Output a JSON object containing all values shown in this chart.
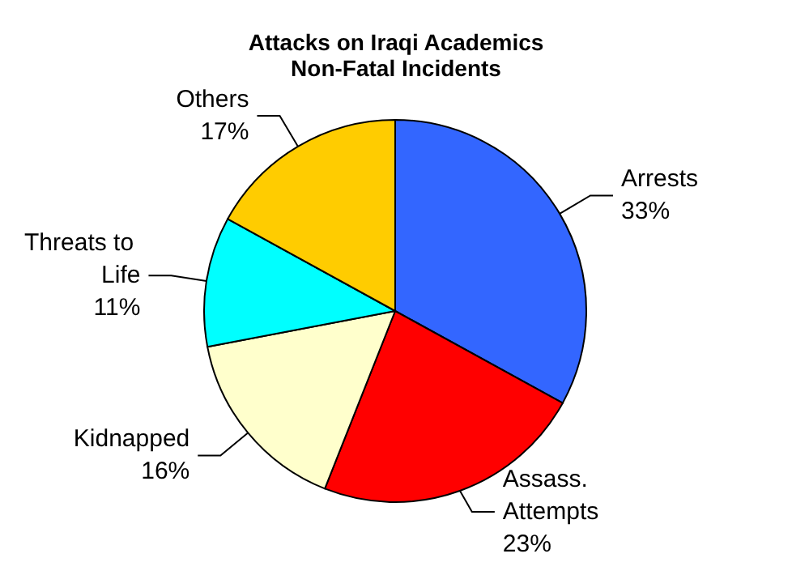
{
  "chart_data": {
    "type": "pie",
    "title": "Attacks on Iraqi Academics",
    "subtitle": "Non-Fatal Incidents",
    "categories": [
      "Arrests",
      "Assass. Attempts",
      "Kidnapped",
      "Threats to Life",
      "Others"
    ],
    "values": [
      33,
      23,
      16,
      11,
      17
    ],
    "value_labels": [
      "33%",
      "23%",
      "16%",
      "11%",
      "17%"
    ],
    "colors": [
      "#3366ff",
      "#ff0000",
      "#ffffcc",
      "#00ffff",
      "#ffcc00"
    ],
    "legend": false
  }
}
